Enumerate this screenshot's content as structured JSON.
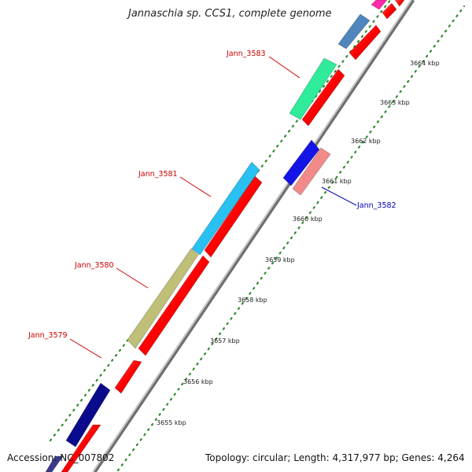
{
  "title": "Jannaschia sp. CCS1, complete genome",
  "footer": {
    "accession": "Accession: NC_007802",
    "topology": "Topology: circular; Length: 4,317,977 bp; Genes: 4,264"
  },
  "colors": {
    "forward_label": "#cc0000",
    "reverse_label": "#0000bb",
    "cds_arrow": "#ff0000",
    "backbone": "#9a9a9a",
    "tick_dots": "#2e8b2e"
  },
  "ticks": [
    {
      "label": "3655 kbp"
    },
    {
      "label": "3656 kbp"
    },
    {
      "label": "3657 kbp"
    },
    {
      "label": "3658 kbp"
    },
    {
      "label": "3659 kbp"
    },
    {
      "label": "3660 kbp"
    },
    {
      "label": "3661 kbp"
    },
    {
      "label": "3662 kbp"
    },
    {
      "label": "3663 kbp"
    },
    {
      "label": "3664 kbp"
    }
  ],
  "gene_labels": [
    {
      "text": "Jann_3579",
      "strand": "forward"
    },
    {
      "text": "Jann_3580",
      "strand": "forward"
    },
    {
      "text": "Jann_3581",
      "strand": "forward"
    },
    {
      "text": "Jann_3582",
      "strand": "reverse"
    },
    {
      "text": "Jann_3583",
      "strand": "forward"
    }
  ]
}
